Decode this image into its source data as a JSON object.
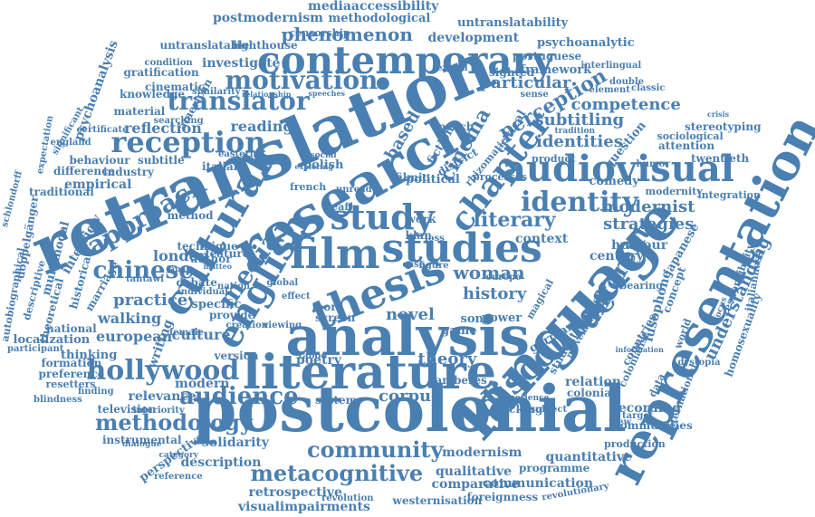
{
  "color": "#4a7fb1",
  "words": [
    "retranslation",
    "language",
    "postcolonial",
    "representation",
    "analysis",
    "research",
    "thesis",
    "literature",
    "cultural",
    "english",
    "film",
    "studies",
    "chapter",
    "study",
    "audiovisual",
    "discourse",
    "contemporary",
    "reception",
    "translator",
    "approach",
    "hollywood",
    "media",
    "motivation",
    "audience",
    "identity",
    "chinese",
    "methodology",
    "metacognitive",
    "perception",
    "community",
    "cinema",
    "literary",
    "different",
    "woman",
    "history",
    "practice",
    "modernist",
    "strategies",
    "understanding",
    "identities",
    "competence",
    "subtitling",
    "corpus",
    "theory",
    "walking",
    "european",
    "writing",
    "reflection",
    "phenomenon",
    "particular",
    "mediaaccessibility",
    "postmodernism",
    "methodological",
    "untranslatability",
    "development",
    "psychoanalytic",
    "censorship",
    "untranslatable",
    "lighthouse",
    "portuguese",
    "framework",
    "interlingual",
    "investigate",
    "gratification",
    "cinematic",
    "american",
    "knowledge",
    "material",
    "psychoanalysis",
    "certificate",
    "behaviour",
    "subtitle",
    "industry",
    "empirical",
    "difference",
    "traditional",
    "interview",
    "marriage",
    "multimodal",
    "doppelgänger",
    "historical",
    "london",
    "culture",
    "reading",
    "based",
    "fiction",
    "speech",
    "critical",
    "question",
    "stereotyping",
    "sociological",
    "attention",
    "twentieth",
    "comedy",
    "modernity",
    "integration",
    "context",
    "humour",
    "century",
    "japanese",
    "responsibility",
    "homosexuality",
    "italianness",
    "concept",
    "bearing",
    "german",
    "student",
    "countries",
    "lusophone",
    "relation",
    "colonial",
    "recording",
    "communities",
    "production",
    "international",
    "relevance",
    "modern",
    "system",
    "television",
    "instrumental",
    "perspective",
    "description",
    "solidarity",
    "qualitative",
    "communication",
    "comparative",
    "programme",
    "retrospective",
    "visualimpairments",
    "westernisation",
    "foreignness",
    "revolution",
    "revolutionary",
    "quantitative",
    "modernism",
    "novel",
    "poetry",
    "game",
    "power",
    "song",
    "screen",
    "more",
    "version",
    "taboo",
    "formation",
    "preference",
    "resetters",
    "finding",
    "blindness",
    "participant",
    "thinking",
    "localization",
    "national",
    "theoretical",
    "descriptive",
    "autobiographical",
    "schlondorff",
    "expectation",
    "significant",
    "england",
    "italian",
    "eastern",
    "polish",
    "social",
    "french",
    "deaf",
    "work",
    "klan",
    "loss",
    "case",
    "figure",
    "europe",
    "magical",
    "realism",
    "movement",
    "colonialist",
    "information",
    "dystopia",
    "classic",
    "crisis",
    "double",
    "humor",
    "product",
    "processes",
    "method",
    "technique",
    "author",
    "japan",
    "debate",
    "tahtawi",
    "individual",
    "specific",
    "provide",
    "creation",
    "viewing",
    "interiority",
    "dialogue",
    "reference",
    "category",
    "tracking",
    "subject",
    "experience",
    "sighted",
    "condition",
    "searching",
    "similarity",
    "relationship",
    "speeches",
    "tradition",
    "element",
    "sense",
    "textual",
    "view",
    "data",
    "world",
    "focus",
    "target",
    "female",
    "matteo",
    "nation",
    "global",
    "effect",
    "feature",
    "filmic",
    "political",
    "district",
    "rhizomatic",
    "amberes",
    "exploring",
    "unread"
  ]
}
